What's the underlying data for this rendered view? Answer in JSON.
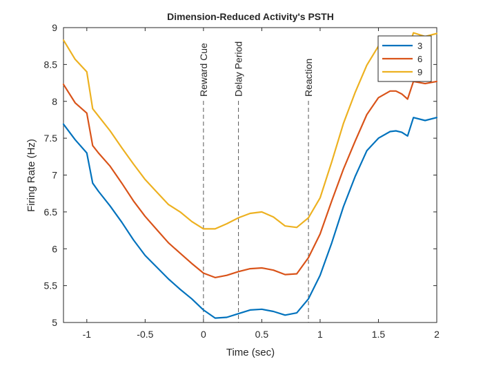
{
  "chart_data": {
    "type": "line",
    "title": "Dimension-Reduced Activity's PSTH",
    "xlabel": "Time (sec)",
    "ylabel": "Firing Rate (Hz)",
    "xlim": [
      -1.2,
      2
    ],
    "ylim": [
      5,
      9
    ],
    "xticks": [
      -1,
      -0.5,
      0,
      0.5,
      1,
      1.5,
      2
    ],
    "xtick_labels": [
      "-1",
      "-0.5",
      "0",
      "0.5",
      "1",
      "1.5",
      "2"
    ],
    "yticks": [
      5,
      5.5,
      6,
      6.5,
      7,
      7.5,
      8,
      8.5,
      9
    ],
    "ytick_labels": [
      "5",
      "5.5",
      "6",
      "6.5",
      "7",
      "7.5",
      "8",
      "8.5",
      "9"
    ],
    "grid": false,
    "legend_position": "top-right",
    "events": [
      {
        "label": "Reward Cue",
        "x": 0
      },
      {
        "label": "Delay Period",
        "x": 0.3
      },
      {
        "label": "Reaction",
        "x": 0.9
      }
    ],
    "series": [
      {
        "name": "3",
        "color": "#0072bd",
        "x": [
          -1.2,
          -1.1,
          -1.0,
          -0.95,
          -0.9,
          -0.8,
          -0.7,
          -0.6,
          -0.5,
          -0.4,
          -0.3,
          -0.2,
          -0.1,
          0.0,
          0.1,
          0.2,
          0.3,
          0.4,
          0.5,
          0.6,
          0.7,
          0.8,
          0.9,
          1.0,
          1.1,
          1.2,
          1.3,
          1.4,
          1.5,
          1.6,
          1.65,
          1.7,
          1.75,
          1.8,
          1.9,
          2.0
        ],
        "values": [
          7.69,
          7.48,
          7.3,
          6.89,
          6.78,
          6.58,
          6.36,
          6.12,
          5.91,
          5.75,
          5.59,
          5.45,
          5.32,
          5.17,
          5.06,
          5.07,
          5.12,
          5.17,
          5.18,
          5.15,
          5.1,
          5.13,
          5.32,
          5.64,
          6.08,
          6.57,
          6.98,
          7.33,
          7.5,
          7.59,
          7.6,
          7.58,
          7.53,
          7.78,
          7.74,
          7.78
        ]
      },
      {
        "name": "6",
        "color": "#d95319",
        "x": [
          -1.2,
          -1.1,
          -1.0,
          -0.95,
          -0.9,
          -0.8,
          -0.7,
          -0.6,
          -0.5,
          -0.4,
          -0.3,
          -0.2,
          -0.1,
          0.0,
          0.1,
          0.2,
          0.3,
          0.4,
          0.5,
          0.6,
          0.7,
          0.8,
          0.9,
          1.0,
          1.1,
          1.2,
          1.3,
          1.4,
          1.5,
          1.6,
          1.65,
          1.7,
          1.75,
          1.8,
          1.9,
          2.0
        ],
        "values": [
          8.23,
          7.98,
          7.84,
          7.4,
          7.3,
          7.12,
          6.89,
          6.65,
          6.44,
          6.26,
          6.08,
          5.94,
          5.8,
          5.67,
          5.61,
          5.64,
          5.69,
          5.73,
          5.74,
          5.71,
          5.65,
          5.66,
          5.88,
          6.2,
          6.65,
          7.08,
          7.46,
          7.82,
          8.05,
          8.14,
          8.14,
          8.1,
          8.03,
          8.27,
          8.24,
          8.27
        ]
      },
      {
        "name": "9",
        "color": "#edb120",
        "x": [
          -1.2,
          -1.1,
          -1.0,
          -0.95,
          -0.9,
          -0.8,
          -0.7,
          -0.6,
          -0.5,
          -0.4,
          -0.3,
          -0.2,
          -0.1,
          0.0,
          0.1,
          0.2,
          0.3,
          0.4,
          0.5,
          0.6,
          0.7,
          0.8,
          0.9,
          1.0,
          1.1,
          1.2,
          1.3,
          1.4,
          1.5,
          1.6,
          1.65,
          1.7,
          1.75,
          1.8,
          1.9,
          2.0
        ],
        "values": [
          8.83,
          8.57,
          8.4,
          7.9,
          7.8,
          7.6,
          7.37,
          7.15,
          6.94,
          6.77,
          6.6,
          6.5,
          6.37,
          6.27,
          6.27,
          6.34,
          6.42,
          6.48,
          6.5,
          6.43,
          6.31,
          6.29,
          6.42,
          6.69,
          7.18,
          7.7,
          8.12,
          8.49,
          8.75,
          8.88,
          8.88,
          8.82,
          8.69,
          8.93,
          8.88,
          8.92
        ]
      }
    ]
  }
}
